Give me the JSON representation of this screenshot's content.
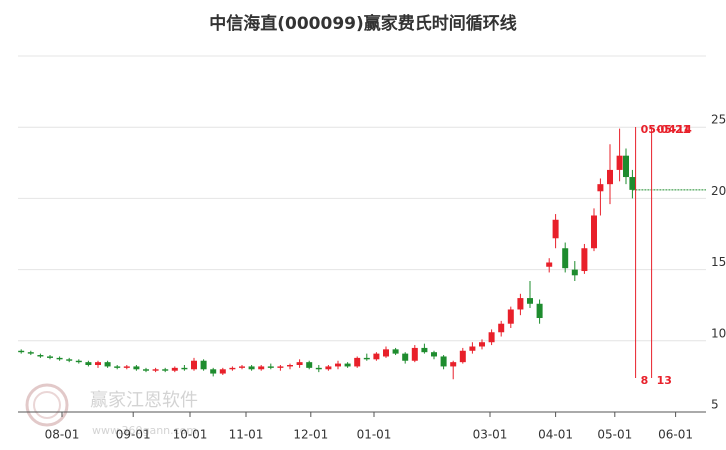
{
  "chart_data": {
    "type": "candlestick",
    "title": "中信海直(000099)赢家费氏时间循环线",
    "xlim": [
      0,
      215
    ],
    "xticks": [
      {
        "value": 13.75,
        "label": "08-01"
      },
      {
        "value": 36,
        "label": "09-01"
      },
      {
        "value": 53.75,
        "label": "10-01"
      },
      {
        "value": 71.25,
        "label": "11-01"
      },
      {
        "value": 91.5,
        "label": "12-01"
      },
      {
        "value": 111.25,
        "label": "01-01"
      },
      {
        "value": 147.5,
        "label": "03-01"
      },
      {
        "value": 168,
        "label": "04-01"
      },
      {
        "value": 186.5,
        "label": "05-01"
      },
      {
        "value": 205.5,
        "label": "06-01"
      }
    ],
    "ylim": [
      5,
      30
    ],
    "yticks": [
      5,
      10,
      15,
      20,
      25
    ],
    "grid": true,
    "up_color": "#e8202a",
    "down_color": "#1e8c2e",
    "candles": {
      "x": [
        1,
        4,
        7,
        10,
        13,
        16,
        19,
        22,
        25,
        28,
        31,
        34,
        37,
        40,
        43,
        46,
        49,
        52,
        55,
        58,
        61,
        64,
        67,
        70,
        73,
        76,
        79,
        82,
        85,
        88,
        91,
        94,
        97,
        100,
        103,
        106,
        109,
        112,
        115,
        118,
        121,
        124,
        127,
        130,
        133,
        136,
        139,
        142,
        145,
        148,
        151,
        154,
        157,
        160,
        163,
        166,
        168,
        171,
        174,
        177,
        180,
        182,
        185,
        188,
        190,
        192
      ],
      "open": [
        9.3,
        9.2,
        9.0,
        8.9,
        8.8,
        8.7,
        8.6,
        8.5,
        8.3,
        8.5,
        8.2,
        8.1,
        8.2,
        8.0,
        7.9,
        8.0,
        7.9,
        8.1,
        8.0,
        8.6,
        8.0,
        7.7,
        8.0,
        8.1,
        8.2,
        8.0,
        8.2,
        8.1,
        8.2,
        8.3,
        8.5,
        8.1,
        8.0,
        8.2,
        8.4,
        8.2,
        8.8,
        8.7,
        8.9,
        9.4,
        9.1,
        8.6,
        9.5,
        9.2,
        8.9,
        8.2,
        8.5,
        9.3,
        9.6,
        9.9,
        10.6,
        11.2,
        12.2,
        13.0,
        12.6,
        15.2,
        17.2,
        16.5,
        15.0,
        14.9,
        16.5,
        20.5,
        21.0,
        22.0,
        23.0,
        21.5
      ],
      "high": [
        9.4,
        9.3,
        9.1,
        9.0,
        8.9,
        8.8,
        8.7,
        8.6,
        8.6,
        8.6,
        8.3,
        8.3,
        8.3,
        8.1,
        8.1,
        8.1,
        8.2,
        8.3,
        8.8,
        8.7,
        8.1,
        8.1,
        8.2,
        8.3,
        8.3,
        8.3,
        8.4,
        8.3,
        8.4,
        8.7,
        8.6,
        8.3,
        8.3,
        8.6,
        8.5,
        8.9,
        9.1,
        9.2,
        9.6,
        9.5,
        9.2,
        9.7,
        9.8,
        9.3,
        9.0,
        8.6,
        9.5,
        9.9,
        10.1,
        10.8,
        11.4,
        12.4,
        13.3,
        14.2,
        12.9,
        15.8,
        18.9,
        16.9,
        15.6,
        16.8,
        19.3,
        21.4,
        23.8,
        24.9,
        23.5,
        22.0
      ],
      "low": [
        9.1,
        9.0,
        8.8,
        8.7,
        8.6,
        8.5,
        8.4,
        8.2,
        8.1,
        8.1,
        8.0,
        8.0,
        7.9,
        7.8,
        7.8,
        7.8,
        7.8,
        7.9,
        7.9,
        7.9,
        7.5,
        7.6,
        7.9,
        8.0,
        7.9,
        7.9,
        8.0,
        7.9,
        8.0,
        8.1,
        8.0,
        7.8,
        7.9,
        8.0,
        8.1,
        8.1,
        8.6,
        8.6,
        8.8,
        9.0,
        8.4,
        8.5,
        9.1,
        8.7,
        8.0,
        7.3,
        8.4,
        9.1,
        9.4,
        9.7,
        10.3,
        10.9,
        11.8,
        12.3,
        11.2,
        14.8,
        16.5,
        14.8,
        14.2,
        14.7,
        16.3,
        18.8,
        19.6,
        21.2,
        21.0,
        20.0
      ],
      "close": [
        9.2,
        9.1,
        8.9,
        8.8,
        8.7,
        8.6,
        8.5,
        8.3,
        8.5,
        8.2,
        8.1,
        8.2,
        8.0,
        7.9,
        8.0,
        7.9,
        8.1,
        8.0,
        8.6,
        8.0,
        7.7,
        8.0,
        8.1,
        8.2,
        8.0,
        8.2,
        8.1,
        8.2,
        8.3,
        8.5,
        8.1,
        8.0,
        8.2,
        8.4,
        8.2,
        8.8,
        8.7,
        9.1,
        9.4,
        9.1,
        8.6,
        9.5,
        9.2,
        8.9,
        8.2,
        8.5,
        9.3,
        9.6,
        9.9,
        10.6,
        11.2,
        12.2,
        13.0,
        12.6,
        11.6,
        15.5,
        18.5,
        15.1,
        14.6,
        16.5,
        18.8,
        21.0,
        22.0,
        23.0,
        21.5,
        20.6
      ]
    },
    "reference_line": 20.6,
    "annotations": [
      {
        "x": 193,
        "top": "05-04",
        "bottom": "8"
      },
      {
        "x": 198,
        "top": "05-14",
        "bottom": "13"
      }
    ],
    "extra_label": "21",
    "watermark": {
      "name": "赢家江恩软件",
      "url": "www.360gann.com"
    }
  }
}
